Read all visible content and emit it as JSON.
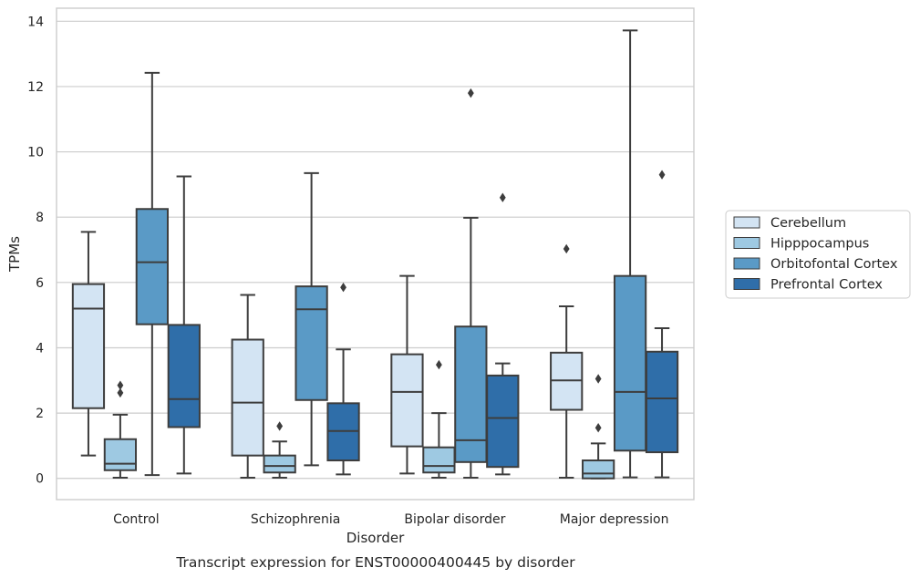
{
  "caption": "Transcript expression for ENST00000400445 by disorder",
  "chart_data": {
    "type": "box",
    "title": "",
    "xlabel": "Disorder",
    "ylabel": "TPMs",
    "ylim": [
      -0.65,
      14.4
    ],
    "yticks": [
      0,
      2,
      4,
      6,
      8,
      10,
      12,
      14
    ],
    "grid": true,
    "legend_position": "right",
    "categories": [
      "Control",
      "Schizophrenia",
      "Bipolar disorder",
      "Major depression"
    ],
    "series": [
      {
        "name": "Cerebellum",
        "color": "#d3e4f3",
        "boxes": [
          {
            "whislo": 0.7,
            "q1": 2.15,
            "med": 5.2,
            "q3": 5.95,
            "whishi": 7.55,
            "fliers": []
          },
          {
            "whislo": 0.02,
            "q1": 0.7,
            "med": 2.32,
            "q3": 4.25,
            "whishi": 5.62,
            "fliers": []
          },
          {
            "whislo": 0.15,
            "q1": 0.98,
            "med": 2.65,
            "q3": 3.8,
            "whishi": 6.2,
            "fliers": []
          },
          {
            "whislo": 0.02,
            "q1": 2.1,
            "med": 3.0,
            "q3": 3.85,
            "whishi": 5.27,
            "fliers": [
              7.03
            ]
          }
        ]
      },
      {
        "name": "Hipppocampus",
        "color": "#9ec9e2",
        "boxes": [
          {
            "whislo": 0.02,
            "q1": 0.25,
            "med": 0.45,
            "q3": 1.2,
            "whishi": 1.95,
            "fliers": [
              2.62,
              2.85
            ]
          },
          {
            "whislo": 0.02,
            "q1": 0.18,
            "med": 0.38,
            "q3": 0.7,
            "whishi": 1.13,
            "fliers": [
              1.6
            ]
          },
          {
            "whislo": 0.02,
            "q1": 0.18,
            "med": 0.38,
            "q3": 0.95,
            "whishi": 2.0,
            "fliers": [
              3.48
            ]
          },
          {
            "whislo": 0.0,
            "q1": 0.0,
            "med": 0.15,
            "q3": 0.55,
            "whishi": 1.07,
            "fliers": [
              1.55,
              3.05
            ]
          }
        ]
      },
      {
        "name": "Orbitofontal Cortex",
        "color": "#5a9ac6",
        "boxes": [
          {
            "whislo": 0.1,
            "q1": 4.72,
            "med": 6.62,
            "q3": 8.25,
            "whishi": 12.42,
            "fliers": []
          },
          {
            "whislo": 0.4,
            "q1": 2.4,
            "med": 5.18,
            "q3": 5.88,
            "whishi": 9.35,
            "fliers": []
          },
          {
            "whislo": 0.02,
            "q1": 0.5,
            "med": 1.17,
            "q3": 4.65,
            "whishi": 7.98,
            "fliers": [
              11.8
            ]
          },
          {
            "whislo": 0.03,
            "q1": 0.85,
            "med": 2.65,
            "q3": 6.2,
            "whishi": 13.72,
            "fliers": []
          }
        ]
      },
      {
        "name": "Prefrontal Cortex",
        "color": "#2f6ea9",
        "boxes": [
          {
            "whislo": 0.15,
            "q1": 1.57,
            "med": 2.43,
            "q3": 4.7,
            "whishi": 9.25,
            "fliers": []
          },
          {
            "whislo": 0.12,
            "q1": 0.55,
            "med": 1.45,
            "q3": 2.3,
            "whishi": 3.95,
            "fliers": [
              5.85
            ]
          },
          {
            "whislo": 0.12,
            "q1": 0.35,
            "med": 1.85,
            "q3": 3.15,
            "whishi": 3.52,
            "fliers": [
              8.6
            ]
          },
          {
            "whislo": 0.03,
            "q1": 0.8,
            "med": 2.45,
            "q3": 3.88,
            "whishi": 4.6,
            "fliers": [
              9.3
            ]
          }
        ]
      }
    ]
  }
}
